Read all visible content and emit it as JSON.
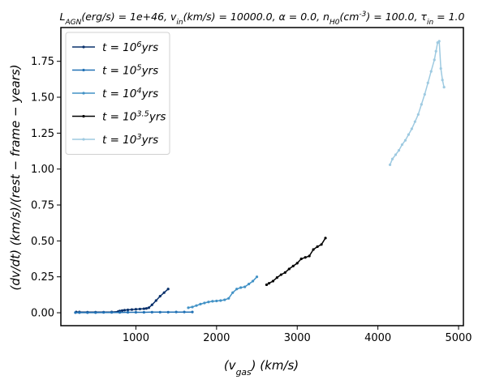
{
  "chart_data": {
    "type": "line",
    "title": "L_AGN(erg/s) = 1e+46, v_in(km/s) = 10000.0, α = 0.0, n_H0(cm^-3) = 100.0, τ_in = 1.0",
    "xlabel": "(v_gas)   (km/s)",
    "ylabel": "(dv/dt)   (km/s)/(rest − frame − years)",
    "xlim": [
      70,
      5060
    ],
    "ylim": [
      -0.09,
      1.985
    ],
    "xticks": [
      1000,
      2000,
      3000,
      4000,
      5000
    ],
    "yticks": [
      0.0,
      0.25,
      0.5,
      0.75,
      1.0,
      1.25,
      1.5,
      1.75
    ],
    "grid": false,
    "legend_position": "top-left",
    "series": [
      {
        "name": "t = 10^6 yrs",
        "color": "#08306b",
        "x": [
          260,
          300,
          400,
          500,
          600,
          700,
          780,
          800,
          830,
          860,
          900,
          950,
          1000,
          1050,
          1100,
          1130,
          1160,
          1200,
          1250,
          1300,
          1350,
          1400
        ],
        "y": [
          0.005,
          0.005,
          0.004,
          0.004,
          0.004,
          0.005,
          0.008,
          0.012,
          0.015,
          0.018,
          0.02,
          0.022,
          0.024,
          0.026,
          0.028,
          0.03,
          0.035,
          0.055,
          0.085,
          0.115,
          0.14,
          0.165
        ]
      },
      {
        "name": "t = 10^5 yrs",
        "color": "#2171b5",
        "x": [
          250,
          300,
          400,
          500,
          600,
          700,
          800,
          900,
          1000,
          1100,
          1200,
          1300,
          1400,
          1500,
          1600,
          1700
        ],
        "y": [
          0.001,
          0.001,
          0.001,
          0.001,
          0.002,
          0.002,
          0.002,
          0.003,
          0.003,
          0.003,
          0.004,
          0.004,
          0.004,
          0.005,
          0.005,
          0.005
        ]
      },
      {
        "name": "t = 10^4 yrs",
        "color": "#4292c6",
        "x": [
          1650,
          1700,
          1750,
          1800,
          1850,
          1900,
          1950,
          2000,
          2050,
          2100,
          2150,
          2200,
          2250,
          2300,
          2350,
          2400,
          2450,
          2500
        ],
        "y": [
          0.035,
          0.04,
          0.05,
          0.06,
          0.068,
          0.075,
          0.08,
          0.082,
          0.085,
          0.09,
          0.1,
          0.14,
          0.165,
          0.175,
          0.18,
          0.2,
          0.22,
          0.25
        ]
      },
      {
        "name": "t = 10^3.5 yrs",
        "color": "#000000",
        "x": [
          2620,
          2650,
          2700,
          2750,
          2800,
          2850,
          2900,
          2950,
          3000,
          3050,
          3100,
          3150,
          3200,
          3250,
          3300,
          3350
        ],
        "y": [
          0.195,
          0.205,
          0.22,
          0.245,
          0.265,
          0.28,
          0.305,
          0.325,
          0.345,
          0.375,
          0.385,
          0.395,
          0.44,
          0.46,
          0.475,
          0.52
        ]
      },
      {
        "name": "t = 10^3 yrs",
        "color": "#9ecae1",
        "x": [
          4150,
          4180,
          4220,
          4260,
          4300,
          4340,
          4380,
          4420,
          4460,
          4500,
          4540,
          4580,
          4620,
          4660,
          4700,
          4720,
          4740,
          4760,
          4780,
          4800,
          4820
        ],
        "y": [
          1.03,
          1.07,
          1.1,
          1.13,
          1.17,
          1.2,
          1.24,
          1.28,
          1.33,
          1.38,
          1.45,
          1.52,
          1.6,
          1.68,
          1.76,
          1.82,
          1.88,
          1.89,
          1.7,
          1.62,
          1.57
        ]
      }
    ]
  }
}
